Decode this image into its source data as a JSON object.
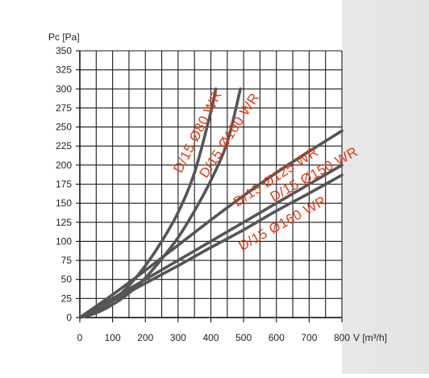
{
  "chart_data": {
    "type": "line",
    "title": "",
    "ylabel": "Pc [Pa]",
    "xlabel": "V [m³/h]",
    "xlim": [
      0,
      800
    ],
    "ylim": [
      0,
      350
    ],
    "x_ticks": [
      0,
      100,
      200,
      300,
      400,
      500,
      600,
      700,
      800
    ],
    "y_ticks": [
      0,
      25,
      50,
      75,
      100,
      125,
      150,
      175,
      200,
      225,
      250,
      275,
      300,
      325,
      350
    ],
    "x_minor_step": 50,
    "grid": true,
    "legend": "none",
    "series": [
      {
        "name": "D/15 Ø80 WR",
        "points": [
          [
            0,
            0
          ],
          [
            50,
            9
          ],
          [
            100,
            22
          ],
          [
            150,
            42
          ],
          [
            200,
            68
          ],
          [
            250,
            100
          ],
          [
            300,
            138
          ],
          [
            350,
            190
          ],
          [
            400,
            270
          ],
          [
            415,
            300
          ]
        ]
      },
      {
        "name": "D/15 Ø100 WR",
        "points": [
          [
            0,
            0
          ],
          [
            50,
            6
          ],
          [
            100,
            17
          ],
          [
            150,
            32
          ],
          [
            200,
            52
          ],
          [
            250,
            77
          ],
          [
            300,
            105
          ],
          [
            350,
            140
          ],
          [
            400,
            180
          ],
          [
            450,
            230
          ],
          [
            490,
            300
          ]
        ]
      },
      {
        "name": "D/15 Ø125 WR",
        "points": [
          [
            0,
            0
          ],
          [
            100,
            30
          ],
          [
            200,
            62
          ],
          [
            300,
            95
          ],
          [
            400,
            128
          ],
          [
            500,
            160
          ],
          [
            600,
            190
          ],
          [
            700,
            218
          ],
          [
            800,
            245
          ]
        ]
      },
      {
        "name": "D/15 Ø150 WR",
        "points": [
          [
            0,
            0
          ],
          [
            100,
            25
          ],
          [
            200,
            50
          ],
          [
            300,
            75
          ],
          [
            400,
            100
          ],
          [
            500,
            125
          ],
          [
            600,
            150
          ],
          [
            700,
            175
          ],
          [
            800,
            200
          ]
        ]
      },
      {
        "name": "D/15 Ø160 WR",
        "points": [
          [
            0,
            0
          ],
          [
            100,
            22
          ],
          [
            200,
            45
          ],
          [
            300,
            68
          ],
          [
            400,
            92
          ],
          [
            500,
            115
          ],
          [
            600,
            140
          ],
          [
            700,
            163
          ],
          [
            800,
            187
          ]
        ]
      }
    ]
  },
  "colors": {
    "line": "#555555",
    "label": "#e23a12",
    "grid": "#1a1a1a",
    "plot_bg": "#ffffff",
    "page_bg": "#ffffff"
  }
}
